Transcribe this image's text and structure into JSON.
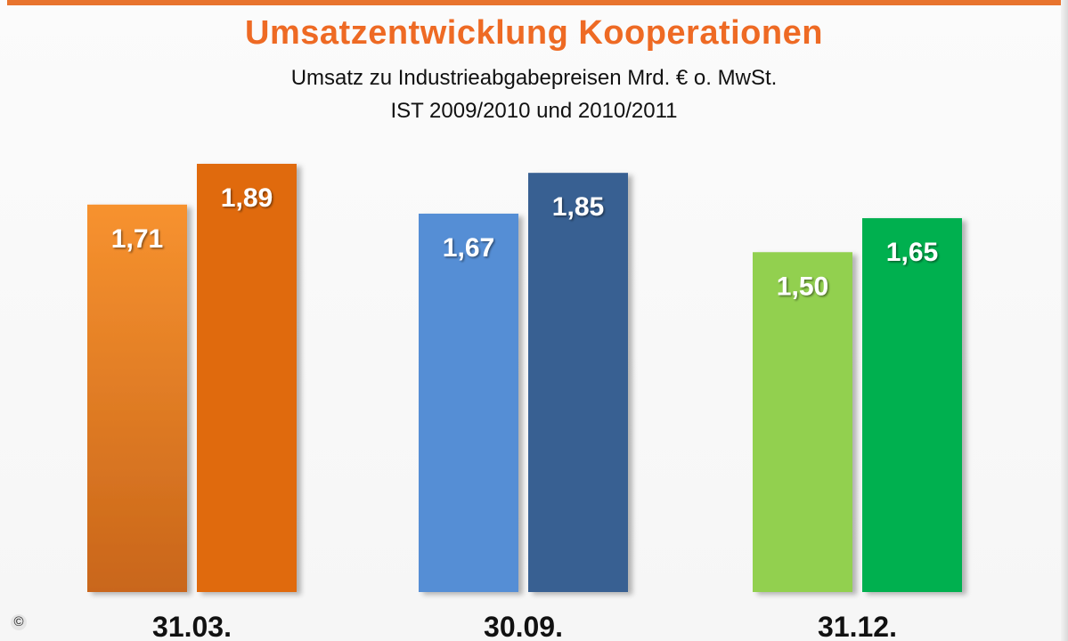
{
  "title": "Umsatzentwicklung Kooperationen",
  "subtitle_line1": "Umsatz zu Industrieabgabepreisen Mrd. € o. MwSt.",
  "subtitle_line2": "IST 2009/2010 und 2010/2011",
  "copyright_symbol": "©",
  "chart_data": {
    "type": "bar",
    "categories": [
      "31.03.",
      "30.09.",
      "31.12."
    ],
    "series": [
      {
        "values": [
          1.71,
          1.67,
          1.5
        ]
      },
      {
        "values": [
          1.89,
          1.85,
          1.65
        ]
      }
    ],
    "data_labels": [
      [
        "1,71",
        "1,89"
      ],
      [
        "1,67",
        "1,85"
      ],
      [
        "1,50",
        "1,65"
      ]
    ],
    "bar_colors": [
      [
        "#f08a2c",
        "#e06a10"
      ],
      [
        "#558ed5",
        "#376092"
      ],
      [
        "#92d050",
        "#00b050"
      ]
    ],
    "grid": false,
    "legend": "none"
  }
}
